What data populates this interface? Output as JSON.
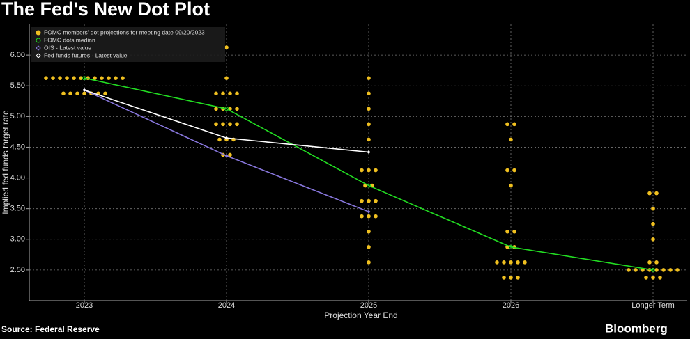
{
  "chart_data": {
    "type": "dot-plot",
    "title": "The Fed's New Dot Plot",
    "y_label": "Implied fed funds target rate",
    "x_label": "Projection Year End",
    "source": "Source: Federal Reserve",
    "brand": "Bloomberg",
    "categories": [
      "2023",
      "2024",
      "2025",
      "2026",
      "Longer Term"
    ],
    "ylim": [
      2.0,
      6.5
    ],
    "yticks": [
      {
        "value": 2.5,
        "label": "2.50"
      },
      {
        "value": 3.0,
        "label": "3.00"
      },
      {
        "value": 3.5,
        "label": "3.50"
      },
      {
        "value": 4.0,
        "label": "4.00"
      },
      {
        "value": 4.5,
        "label": "4.50"
      },
      {
        "value": 5.0,
        "label": "5.00"
      },
      {
        "value": 5.5,
        "label": "5.50"
      },
      {
        "value": 6.0,
        "label": "6.00"
      }
    ],
    "grid": true,
    "legend": "upper left",
    "series": [
      {
        "name": "FOMC members' dot projections for meeting date 09/20/2023",
        "kind": "dots",
        "color": "#f0c020",
        "x": [
          "2023",
          "2023",
          "2023",
          "2023",
          "2023",
          "2023",
          "2023",
          "2023",
          "2023",
          "2023",
          "2023",
          "2023",
          "2023",
          "2023",
          "2023",
          "2023",
          "2023",
          "2023",
          "2023",
          "2024",
          "2024",
          "2024",
          "2024",
          "2024",
          "2024",
          "2024",
          "2024",
          "2024",
          "2024",
          "2024",
          "2024",
          "2024",
          "2024",
          "2024",
          "2024",
          "2024",
          "2024",
          "2024",
          "2025",
          "2025",
          "2025",
          "2025",
          "2025",
          "2025",
          "2025",
          "2025",
          "2025",
          "2025",
          "2025",
          "2025",
          "2025",
          "2025",
          "2025",
          "2025",
          "2025",
          "2025",
          "2025",
          "2026",
          "2026",
          "2026",
          "2026",
          "2026",
          "2026",
          "2026",
          "2026",
          "2026",
          "2026",
          "2026",
          "2026",
          "2026",
          "2026",
          "2026",
          "2026",
          "2026",
          "2026",
          "Longer Term",
          "Longer Term",
          "Longer Term",
          "Longer Term",
          "Longer Term",
          "Longer Term",
          "Longer Term",
          "Longer Term",
          "Longer Term",
          "Longer Term",
          "Longer Term",
          "Longer Term",
          "Longer Term",
          "Longer Term",
          "Longer Term",
          "Longer Term",
          "Longer Term",
          "Longer Term"
        ],
        "values": [
          5.625,
          5.625,
          5.625,
          5.625,
          5.625,
          5.625,
          5.625,
          5.625,
          5.625,
          5.625,
          5.625,
          5.625,
          5.375,
          5.375,
          5.375,
          5.375,
          5.375,
          5.375,
          5.375,
          6.125,
          5.625,
          5.375,
          5.375,
          5.375,
          5.375,
          5.125,
          5.125,
          5.125,
          5.125,
          4.875,
          4.875,
          4.875,
          4.875,
          4.625,
          4.625,
          4.625,
          4.375,
          4.375,
          5.625,
          5.375,
          5.125,
          4.875,
          4.625,
          4.125,
          4.125,
          4.125,
          3.875,
          3.875,
          3.625,
          3.625,
          3.625,
          3.375,
          3.375,
          3.375,
          3.125,
          2.875,
          2.625,
          4.875,
          4.875,
          4.625,
          4.125,
          4.125,
          3.875,
          3.125,
          3.125,
          2.875,
          2.875,
          2.625,
          2.625,
          2.625,
          2.625,
          2.625,
          2.375,
          2.375,
          2.375,
          3.75,
          3.75,
          3.5,
          3.25,
          3.0,
          2.625,
          2.625,
          2.5,
          2.5,
          2.5,
          2.5,
          2.5,
          2.5,
          2.5,
          2.5,
          2.375,
          2.375,
          2.375
        ]
      },
      {
        "name": "FOMC dots median",
        "kind": "line",
        "marker": "circle",
        "color": "#22dd22",
        "values": [
          5.625,
          5.125,
          3.875,
          2.875,
          2.5
        ]
      },
      {
        "name": "OIS - Latest value",
        "kind": "line",
        "marker": "diamond",
        "color": "#8877dd",
        "values": [
          5.43,
          4.36,
          3.45,
          null,
          null
        ]
      },
      {
        "name": "Fed funds futures - Latest value",
        "kind": "line",
        "marker": "diamond",
        "color": "#ffffff",
        "values": [
          5.43,
          4.65,
          4.42,
          null,
          null
        ]
      }
    ]
  }
}
